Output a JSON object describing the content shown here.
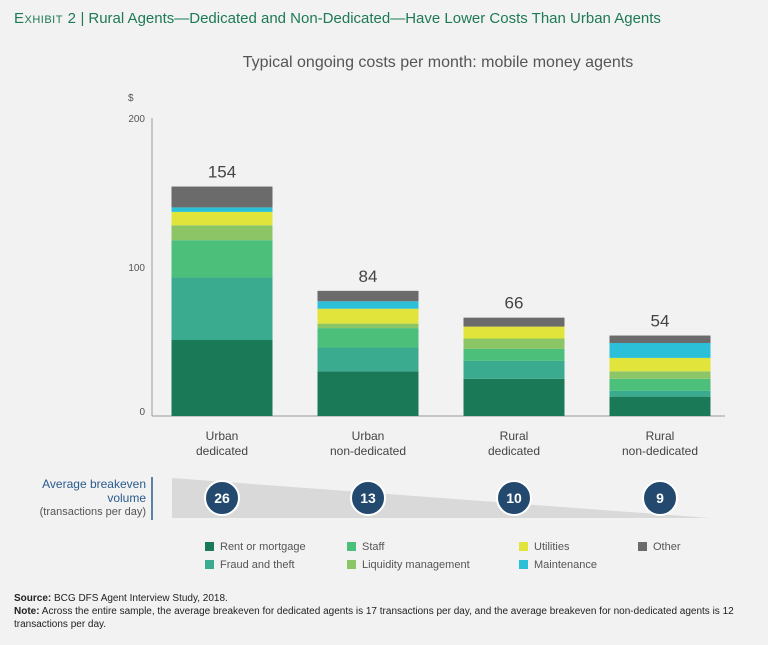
{
  "exhibit": {
    "label": "Exhibit 2",
    "separator": "|",
    "title": "Rural Agents—Dedicated and Non-Dedicated—Have Lower Costs Than Urban Agents"
  },
  "chart_data": {
    "type": "bar",
    "stacked": true,
    "title": "Typical ongoing costs per month: mobile money agents",
    "ylabel": "$",
    "ylim": [
      0,
      200
    ],
    "yticks": [
      0,
      100,
      200
    ],
    "categories": [
      "Urban\ndedicated",
      "Urban\nnon-dedicated",
      "Rural\ndedicated",
      "Rural\nnon-dedicated"
    ],
    "totals": [
      154,
      84,
      66,
      54
    ],
    "series": [
      {
        "name": "Rent or mortgage",
        "color": "#1a7a57",
        "values": [
          51,
          30,
          25,
          13
        ]
      },
      {
        "name": "Fraud and theft",
        "color": "#3aab8f",
        "values": [
          42,
          16,
          12,
          4
        ]
      },
      {
        "name": "Staff",
        "color": "#4cbf7a",
        "values": [
          25,
          13,
          8,
          8
        ]
      },
      {
        "name": "Liquidity management",
        "color": "#8cc566",
        "values": [
          10,
          3,
          7,
          5
        ]
      },
      {
        "name": "Utilities",
        "color": "#e1e43a",
        "values": [
          9,
          10,
          8,
          9
        ]
      },
      {
        "name": "Maintenance",
        "color": "#2bc0d8",
        "values": [
          3,
          5,
          0,
          10
        ]
      },
      {
        "name": "Other",
        "color": "#6b6b6b",
        "values": [
          14,
          7,
          6,
          5
        ]
      }
    ],
    "breakeven": {
      "title": "Average breakeven volume",
      "subtitle": "(transactions per day)",
      "values": [
        "26",
        "13",
        "10",
        "9"
      ]
    }
  },
  "source": {
    "source_label": "Source:",
    "source_text": "BCG DFS Agent Interview Study, 2018.",
    "note_label": "Note:",
    "note_text": "Across the entire sample, the average breakeven for dedicated agents is 17 transactions per day, and the average breakeven for non-dedicated agents is 12 transactions per day."
  }
}
